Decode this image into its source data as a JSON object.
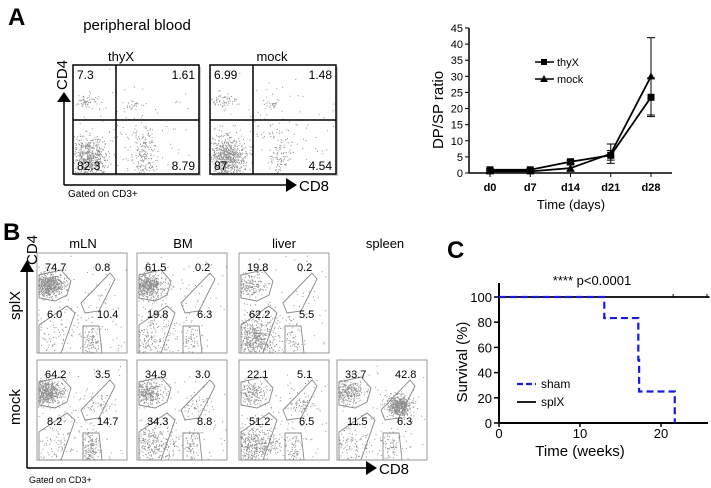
{
  "panel_a": {
    "label": "A",
    "title": "peripheral blood",
    "y_axis": "CD4",
    "x_axis": "CD8",
    "gating": "Gated on CD3+",
    "plots": [
      {
        "name": "thyX",
        "quadrants": [
          "7.3",
          "1.61",
          "82.3",
          "8.79"
        ]
      },
      {
        "name": "mock",
        "quadrants": [
          "6.99",
          "1.48",
          "87",
          "4.54"
        ]
      }
    ]
  },
  "panel_b": {
    "label": "B",
    "y_axis": "CD4",
    "x_axis": "CD8",
    "gating": "Gated on CD3+",
    "columns": [
      "mLN",
      "BM",
      "liver",
      "spleen"
    ],
    "rows": [
      {
        "name": "splX",
        "plots": [
          [
            "74.7",
            "0.8",
            "6.0",
            "10.4"
          ],
          [
            "61.5",
            "0.2",
            "19.8",
            "6.3"
          ],
          [
            "19.8",
            "0.2",
            "62.2",
            "5.5"
          ],
          null
        ]
      },
      {
        "name": "mock",
        "plots": [
          [
            "64.2",
            "3.5",
            "8.2",
            "14.7"
          ],
          [
            "34.9",
            "3.0",
            "34.3",
            "8.8"
          ],
          [
            "22.1",
            "5.1",
            "51.2",
            "6.5"
          ],
          [
            "33.7",
            "42.8",
            "11.5",
            "6.3"
          ]
        ]
      }
    ]
  },
  "panel_c": {
    "label": "C"
  },
  "chart_data": [
    {
      "type": "line",
      "panel": "A",
      "xlabel": "Time (days)",
      "ylabel": "DP/SP ratio",
      "categories": [
        "d0",
        "d7",
        "d14",
        "d21",
        "d28"
      ],
      "ylim": [
        0,
        45
      ],
      "yticks": [
        "0",
        "5",
        "10",
        "15",
        "20",
        "25",
        "30",
        "35",
        "40",
        "45"
      ],
      "legend_position": "top-center",
      "series": [
        {
          "name": "thyX",
          "marker": "square",
          "values": [
            1,
            1,
            3.5,
            5.5,
            23.5
          ],
          "errors": [
            0.3,
            0.3,
            0.5,
            1.5,
            6
          ]
        },
        {
          "name": "mock",
          "marker": "triangle",
          "values": [
            0.5,
            0.5,
            1.5,
            6,
            30
          ],
          "errors": [
            0.3,
            0.3,
            1,
            3,
            12
          ]
        }
      ]
    },
    {
      "type": "line",
      "panel": "C",
      "subtype": "kaplan-meier",
      "xlabel": "Time (weeks)",
      "ylabel": "Survival (%)",
      "annotation": "**** p<0.0001",
      "xlim": [
        0,
        26
      ],
      "ylim": [
        0,
        100
      ],
      "xticks": [
        "0",
        "10",
        "20"
      ],
      "yticks": [
        "0",
        "20",
        "40",
        "60",
        "80",
        "100"
      ],
      "legend_position": "bottom-left",
      "series": [
        {
          "name": "sham",
          "color": "#1a1adc",
          "style": "dashed",
          "steps": [
            [
              0,
              100
            ],
            [
              13,
              100
            ],
            [
              13,
              83.3
            ],
            [
              17.2,
              83.3
            ],
            [
              17.2,
              50
            ],
            [
              17.3,
              50
            ],
            [
              17.3,
              25
            ],
            [
              21.7,
              25
            ],
            [
              21.7,
              0
            ]
          ]
        },
        {
          "name": "splX",
          "color": "#000000",
          "style": "solid",
          "steps": [
            [
              0,
              100
            ],
            [
              26,
              100
            ]
          ]
        }
      ]
    }
  ]
}
